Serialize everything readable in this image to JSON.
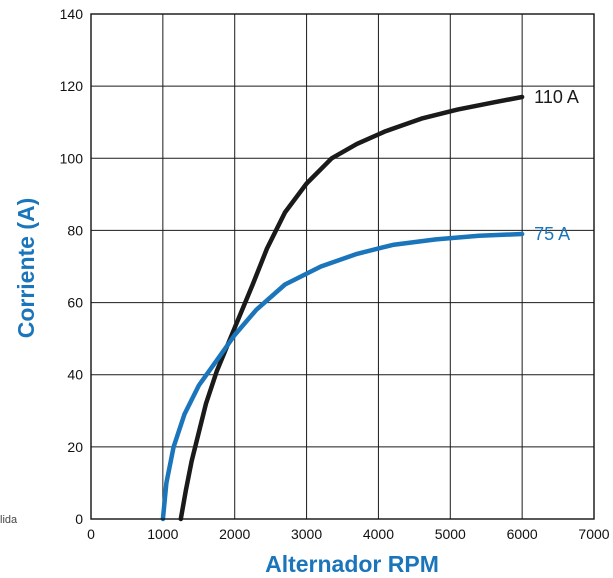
{
  "chart_data": {
    "type": "line",
    "title": "",
    "xlabel": "Alternador RPM",
    "ylabel": "Corriente (A)",
    "xlim": [
      0,
      7000
    ],
    "ylim": [
      0,
      140
    ],
    "x_ticks": [
      "0",
      "1000",
      "2000",
      "3000",
      "4000",
      "5000",
      "6000",
      "7000"
    ],
    "y_ticks": [
      "0",
      "20",
      "40",
      "60",
      "80",
      "100",
      "120",
      "140"
    ],
    "grid": true,
    "series": [
      {
        "name": "110 A",
        "color": "#1a1a1a",
        "points": [
          [
            1250,
            0
          ],
          [
            1320,
            8
          ],
          [
            1400,
            16
          ],
          [
            1500,
            24
          ],
          [
            1600,
            32
          ],
          [
            1750,
            41
          ],
          [
            2000,
            53
          ],
          [
            2250,
            65
          ],
          [
            2450,
            75
          ],
          [
            2700,
            85
          ],
          [
            3000,
            93
          ],
          [
            3350,
            100
          ],
          [
            3700,
            104
          ],
          [
            4100,
            107.5
          ],
          [
            4600,
            111
          ],
          [
            5100,
            113.5
          ],
          [
            5600,
            115.5
          ],
          [
            6000,
            117
          ]
        ]
      },
      {
        "name": "75 A",
        "color": "#1b75bb",
        "points": [
          [
            1000,
            0
          ],
          [
            1050,
            10
          ],
          [
            1150,
            20
          ],
          [
            1300,
            29
          ],
          [
            1500,
            37
          ],
          [
            1750,
            44
          ],
          [
            2000,
            51
          ],
          [
            2300,
            58
          ],
          [
            2700,
            65
          ],
          [
            3200,
            70
          ],
          [
            3700,
            73.5
          ],
          [
            4200,
            76
          ],
          [
            4800,
            77.5
          ],
          [
            5400,
            78.5
          ],
          [
            6000,
            79
          ]
        ]
      }
    ]
  },
  "fragments": {
    "left_edge_text": "lida"
  }
}
